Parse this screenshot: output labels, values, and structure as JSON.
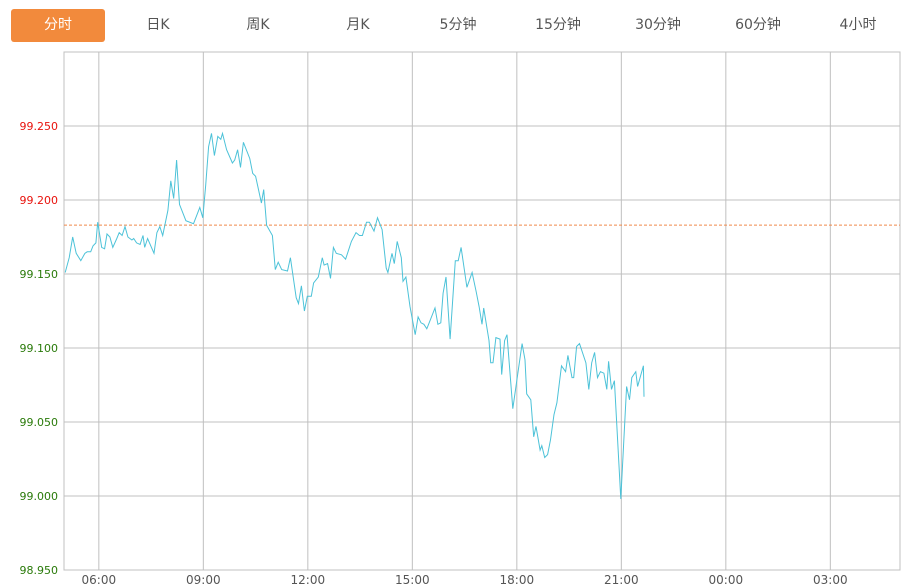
{
  "tabs": [
    {
      "label": "分时",
      "active": true
    },
    {
      "label": "日K"
    },
    {
      "label": "周K"
    },
    {
      "label": "月K"
    },
    {
      "label": "5分钟"
    },
    {
      "label": "15分钟"
    },
    {
      "label": "30分钟"
    },
    {
      "label": "60分钟"
    },
    {
      "label": "4小时"
    }
  ],
  "colors": {
    "accent": "#f28a3c",
    "line": "#4cc2d8",
    "up_label": "#e8120c",
    "down_label": "#2a7a0a",
    "reference_line": "#f0894a",
    "grid": "#c0c0c0"
  },
  "chart_data": {
    "type": "line",
    "title": "",
    "xlabel": "",
    "ylabel": "",
    "ylim": [
      98.95,
      99.3
    ],
    "xlim": [
      "05:00",
      "05:00 (+1 day)"
    ],
    "y_ticks": [
      "98.950",
      "99.000",
      "99.050",
      "99.100",
      "99.150",
      "99.200",
      "99.250"
    ],
    "x_ticks": [
      "06:00",
      "09:00",
      "12:00",
      "15:00",
      "18:00",
      "21:00",
      "00:00",
      "03:00"
    ],
    "grid": true,
    "reference_value": 99.183,
    "reference_style": "dashed",
    "series": [
      {
        "points": [
          [
            "05:02",
            99.151
          ],
          [
            "05:09",
            99.161
          ],
          [
            "05:15",
            99.175
          ],
          [
            "05:21",
            99.164
          ],
          [
            "05:29",
            99.159
          ],
          [
            "05:36",
            99.164
          ],
          [
            "05:40",
            99.165
          ],
          [
            "05:46",
            99.165
          ],
          [
            "05:50",
            99.169
          ],
          [
            "05:55",
            99.171
          ],
          [
            "05:58",
            99.185
          ],
          [
            "06:05",
            99.168
          ],
          [
            "06:10",
            99.167
          ],
          [
            "06:14",
            99.177
          ],
          [
            "06:19",
            99.175
          ],
          [
            "06:24",
            99.168
          ],
          [
            "06:31",
            99.174
          ],
          [
            "06:35",
            99.178
          ],
          [
            "06:40",
            99.176
          ],
          [
            "06:45",
            99.182
          ],
          [
            "06:50",
            99.175
          ],
          [
            "06:57",
            99.173
          ],
          [
            "07:00",
            99.174
          ],
          [
            "07:05",
            99.171
          ],
          [
            "07:11",
            99.17
          ],
          [
            "07:16",
            99.176
          ],
          [
            "07:19",
            99.168
          ],
          [
            "07:24",
            99.174
          ],
          [
            "07:35",
            99.164
          ],
          [
            "07:40",
            99.178
          ],
          [
            "07:45",
            99.182
          ],
          [
            "07:50",
            99.176
          ],
          [
            "07:59",
            99.193
          ],
          [
            "08:04",
            99.213
          ],
          [
            "08:09",
            99.201
          ],
          [
            "08:14",
            99.227
          ],
          [
            "08:19",
            99.197
          ],
          [
            "08:30",
            99.186
          ],
          [
            "08:43",
            99.184
          ],
          [
            "08:54",
            99.195
          ],
          [
            "08:59",
            99.188
          ],
          [
            "09:04",
            99.21
          ],
          [
            "09:09",
            99.236
          ],
          [
            "09:14",
            99.245
          ],
          [
            "09:19",
            99.23
          ],
          [
            "09:25",
            99.243
          ],
          [
            "09:30",
            99.241
          ],
          [
            "09:33",
            99.245
          ],
          [
            "09:40",
            99.234
          ],
          [
            "09:50",
            99.225
          ],
          [
            "09:54",
            99.227
          ],
          [
            "09:59",
            99.234
          ],
          [
            "10:04",
            99.222
          ],
          [
            "10:09",
            99.239
          ],
          [
            "10:20",
            99.228
          ],
          [
            "10:25",
            99.218
          ],
          [
            "10:30",
            99.216
          ],
          [
            "10:40",
            99.198
          ],
          [
            "10:44",
            99.207
          ],
          [
            "10:49",
            99.183
          ],
          [
            "10:59",
            99.176
          ],
          [
            "11:04",
            99.153
          ],
          [
            "11:09",
            99.158
          ],
          [
            "11:15",
            99.153
          ],
          [
            "11:25",
            99.152
          ],
          [
            "11:30",
            99.161
          ],
          [
            "11:40",
            99.134
          ],
          [
            "11:44",
            99.13
          ],
          [
            "11:49",
            99.142
          ],
          [
            "11:54",
            99.125
          ],
          [
            "11:59",
            99.135
          ],
          [
            "12:06",
            99.135
          ],
          [
            "12:10",
            99.144
          ],
          [
            "12:18",
            99.148
          ],
          [
            "12:25",
            99.161
          ],
          [
            "12:28",
            99.156
          ],
          [
            "12:34",
            99.157
          ],
          [
            "12:39",
            99.147
          ],
          [
            "12:44",
            99.168
          ],
          [
            "12:49",
            99.164
          ],
          [
            "12:58",
            99.163
          ],
          [
            "13:05",
            99.16
          ],
          [
            "13:15",
            99.172
          ],
          [
            "13:23",
            99.178
          ],
          [
            "13:29",
            99.176
          ],
          [
            "13:34",
            99.176
          ],
          [
            "13:41",
            99.185
          ],
          [
            "13:46",
            99.185
          ],
          [
            "13:54",
            99.179
          ],
          [
            "14:00",
            99.188
          ],
          [
            "14:08",
            99.18
          ],
          [
            "14:15",
            99.154
          ],
          [
            "14:18",
            99.151
          ],
          [
            "14:25",
            99.164
          ],
          [
            "14:29",
            99.157
          ],
          [
            "14:34",
            99.172
          ],
          [
            "14:41",
            99.161
          ],
          [
            "14:44",
            99.145
          ],
          [
            "14:49",
            99.148
          ],
          [
            "14:56",
            99.128
          ],
          [
            "15:05",
            99.109
          ],
          [
            "15:10",
            99.121
          ],
          [
            "15:15",
            99.117
          ],
          [
            "15:20",
            99.116
          ],
          [
            "15:25",
            99.113
          ],
          [
            "15:31",
            99.119
          ],
          [
            "15:39",
            99.127
          ],
          [
            "15:44",
            99.116
          ],
          [
            "15:49",
            99.117
          ],
          [
            "15:53",
            99.137
          ],
          [
            "15:58",
            99.148
          ],
          [
            "16:05",
            99.106
          ],
          [
            "16:14",
            99.159
          ],
          [
            "16:19",
            99.159
          ],
          [
            "16:24",
            99.168
          ],
          [
            "16:34",
            99.141
          ],
          [
            "16:43",
            99.151
          ],
          [
            "16:50",
            99.138
          ],
          [
            "16:55",
            99.128
          ],
          [
            "17:00",
            99.116
          ],
          [
            "17:03",
            99.127
          ],
          [
            "17:12",
            99.105
          ],
          [
            "17:15",
            99.09
          ],
          [
            "17:19",
            99.09
          ],
          [
            "17:24",
            99.107
          ],
          [
            "17:31",
            99.106
          ],
          [
            "17:34",
            99.082
          ],
          [
            "17:39",
            99.105
          ],
          [
            "17:43",
            99.109
          ],
          [
            "17:53",
            99.059
          ],
          [
            "18:00",
            99.078
          ],
          [
            "18:09",
            99.103
          ],
          [
            "18:14",
            99.092
          ],
          [
            "18:17",
            99.069
          ],
          [
            "18:24",
            99.065
          ],
          [
            "18:29",
            99.04
          ],
          [
            "18:33",
            99.047
          ],
          [
            "18:40",
            99.031
          ],
          [
            "18:43",
            99.034
          ],
          [
            "18:48",
            99.026
          ],
          [
            "18:53",
            99.028
          ],
          [
            "18:58",
            99.038
          ],
          [
            "19:04",
            99.055
          ],
          [
            "19:09",
            99.063
          ],
          [
            "19:17",
            99.088
          ],
          [
            "19:24",
            99.084
          ],
          [
            "19:28",
            99.095
          ],
          [
            "19:35",
            99.08
          ],
          [
            "19:38",
            99.08
          ],
          [
            "19:43",
            99.101
          ],
          [
            "19:48",
            99.103
          ],
          [
            "19:59",
            99.09
          ],
          [
            "20:04",
            99.072
          ],
          [
            "20:09",
            99.09
          ],
          [
            "20:14",
            99.097
          ],
          [
            "20:19",
            99.08
          ],
          [
            "20:24",
            99.084
          ],
          [
            "20:30",
            99.083
          ],
          [
            "20:35",
            99.072
          ],
          [
            "20:38",
            99.091
          ],
          [
            "20:43",
            99.072
          ],
          [
            "20:48",
            99.078
          ],
          [
            "20:59",
            98.998
          ],
          [
            "21:09",
            99.074
          ],
          [
            "21:14",
            99.065
          ],
          [
            "21:18",
            99.08
          ],
          [
            "21:25",
            99.084
          ],
          [
            "21:28",
            99.074
          ],
          [
            "21:38",
            99.088
          ],
          [
            "21:39",
            99.067
          ]
        ]
      }
    ]
  }
}
